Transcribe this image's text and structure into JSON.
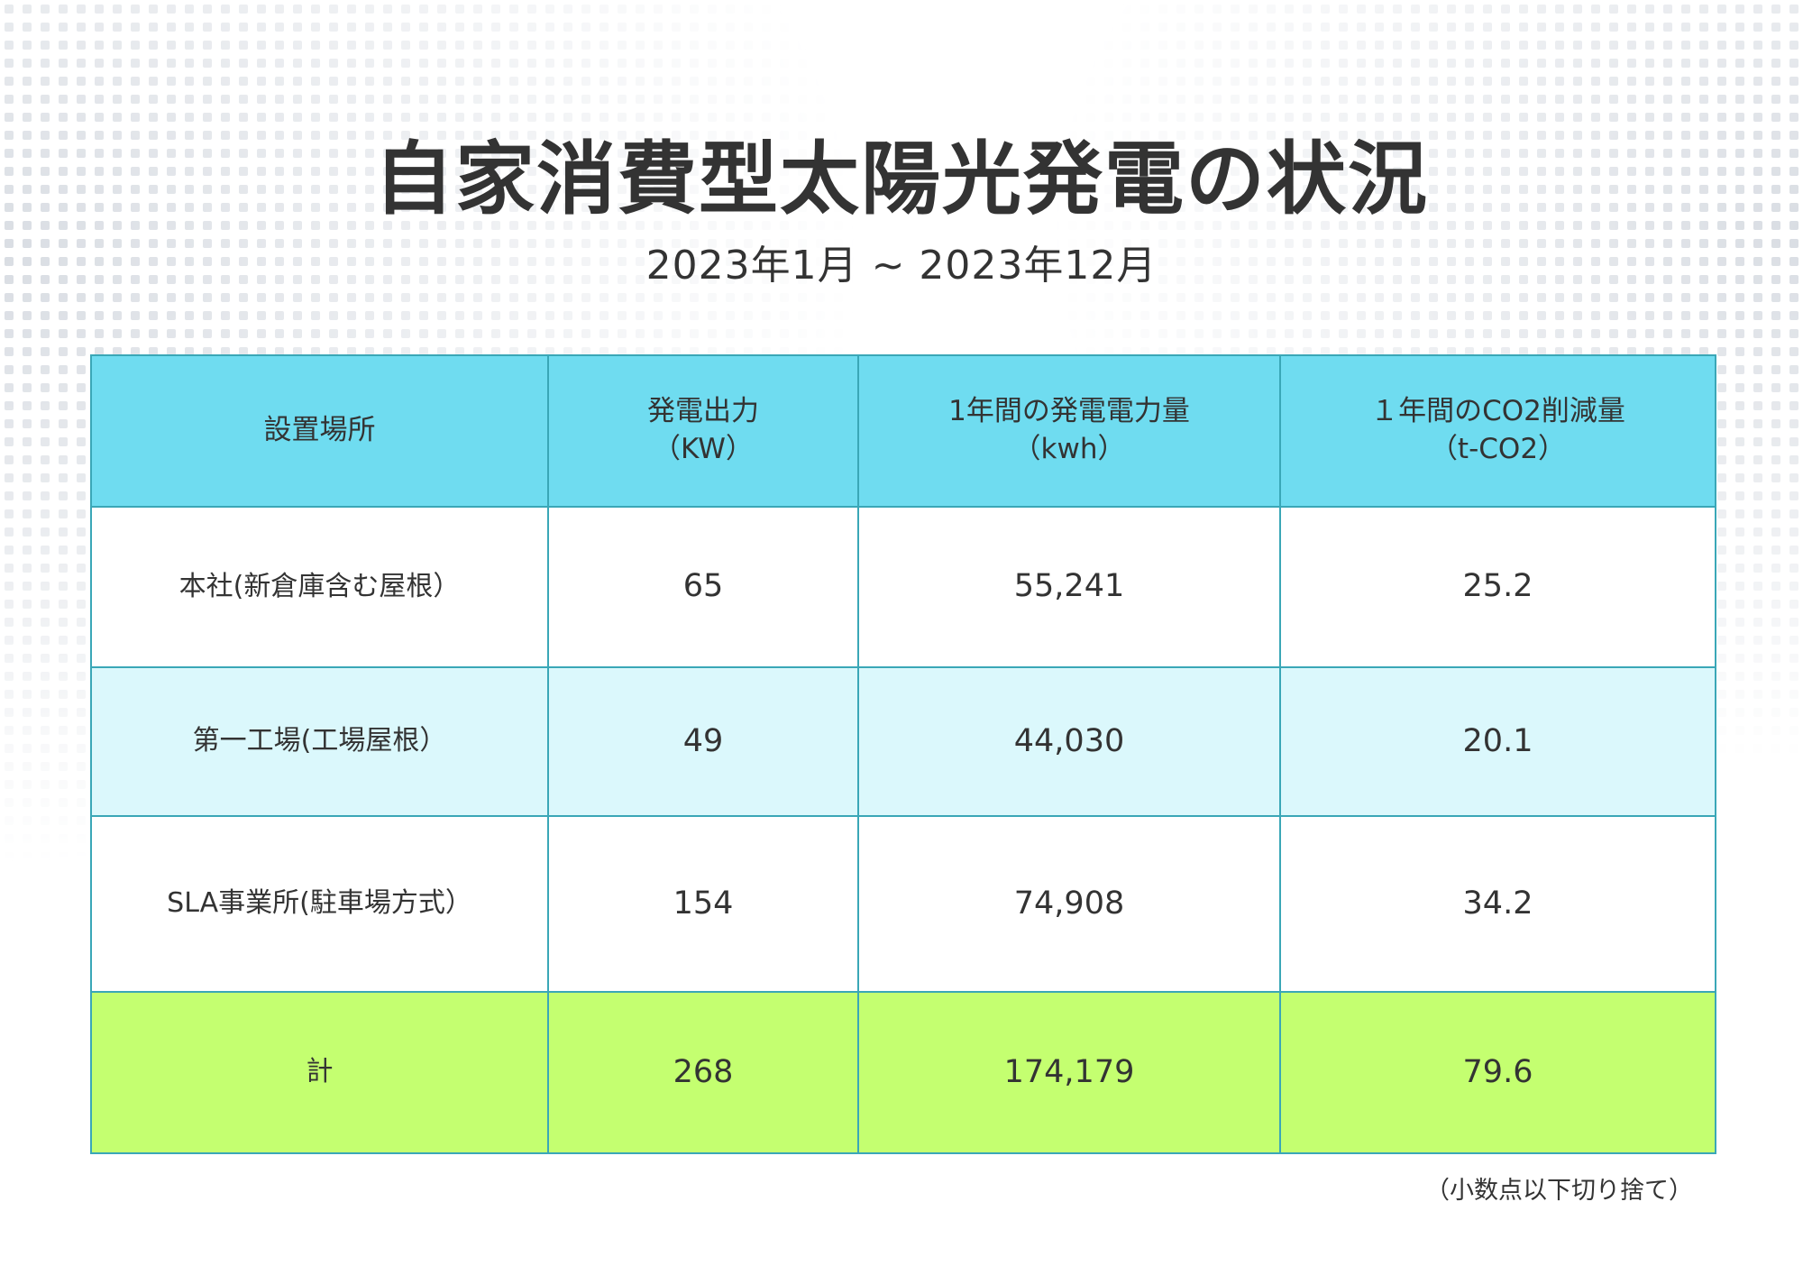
{
  "title": "自家消費型太陽光発電の状況",
  "period": "2023年1月 ~ 2023年12月",
  "table": {
    "headers": [
      {
        "line1": "設置場所",
        "line2": ""
      },
      {
        "line1": "発電出力",
        "line2": "（KW）"
      },
      {
        "line1": "1年間の発電電力量",
        "line2": "（kwh）"
      },
      {
        "line1": "１年間のCO2削減量",
        "line2": "（t-CO2）"
      }
    ],
    "rows": [
      {
        "location": "本社(新倉庫含む屋根）",
        "output": "65",
        "energy": "55,241",
        "co2": "25.2"
      },
      {
        "location": "第一工場(工場屋根）",
        "output": "49",
        "energy": "44,030",
        "co2": "20.1"
      },
      {
        "location": "SLA事業所(駐車場方式）",
        "output": "154",
        "energy": "74,908",
        "co2": "34.2"
      }
    ],
    "total": {
      "label": "計",
      "output": "268",
      "energy": "174,179",
      "co2": "79.6"
    }
  },
  "note": "（小数点以下切り捨て）",
  "colors": {
    "header_bg": "#6fdcf0",
    "alt_row_bg": "#dbf8fc",
    "total_bg": "#c4ff70",
    "border": "#3aa7b7",
    "text": "#333333"
  }
}
